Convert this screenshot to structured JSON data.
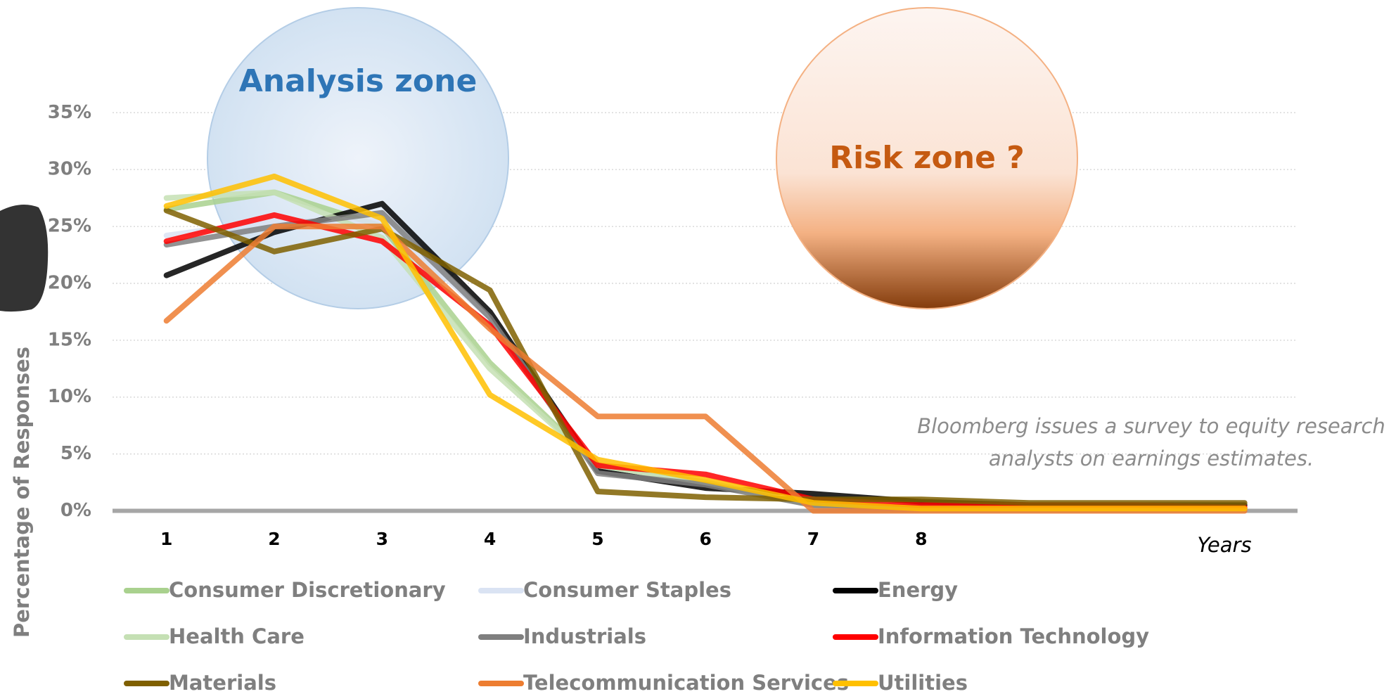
{
  "chart_data": {
    "type": "line",
    "y_label": "Percentage of Responses",
    "x_label": "Years",
    "categories": [
      "1",
      "2",
      "3",
      "4",
      "5",
      "6",
      "7",
      "8",
      null,
      null,
      null
    ],
    "ylim": [
      0,
      35
    ],
    "yticks": [
      {
        "value": 0,
        "label": "0%"
      },
      {
        "value": 5,
        "label": "5%"
      },
      {
        "value": 10,
        "label": "10%"
      },
      {
        "value": 15,
        "label": "15%"
      },
      {
        "value": 20,
        "label": "20%"
      },
      {
        "value": 25,
        "label": "25%"
      },
      {
        "value": 30,
        "label": "30%"
      },
      {
        "value": 35,
        "label": "35%"
      }
    ],
    "grid": true,
    "annotations": [
      "Analysis zone",
      "Risk zone ?"
    ],
    "note": [
      "Bloomberg issues a survey to equity research",
      "analysts on earnings estimates."
    ],
    "series": [
      {
        "name": "Consumer Discretionary",
        "color": "#a9d18e",
        "values": [
          26.5,
          28,
          25,
          13,
          4,
          2.5,
          0.5,
          0.3,
          0.2,
          0.2,
          0.2
        ]
      },
      {
        "name": "Consumer Staples",
        "color": "#dae3f3",
        "values": [
          24.2,
          25.5,
          25.5,
          17,
          3.5,
          2.5,
          0.5,
          0.3,
          0.2,
          0.2,
          0.2
        ]
      },
      {
        "name": "Energy",
        "color": "#000000",
        "values": [
          20.7,
          24.5,
          27,
          17.5,
          3.5,
          2,
          1.5,
          0.8,
          0.5,
          0.5,
          0.5
        ]
      },
      {
        "name": "Health Care",
        "color": "#c5e0b4",
        "values": [
          27.5,
          28,
          24,
          12.5,
          4,
          2.5,
          0.5,
          0.3,
          0.2,
          0.2,
          0.2
        ]
      },
      {
        "name": "Industrials",
        "color": "#7f7f7f",
        "values": [
          23.4,
          25,
          26.2,
          17,
          3.3,
          2.3,
          0.5,
          0.3,
          0.2,
          0.2,
          0.2
        ]
      },
      {
        "name": "Information Technology",
        "color": "#ff0000",
        "values": [
          23.7,
          26,
          23.7,
          16.3,
          4,
          3.2,
          1,
          0.5,
          0.5,
          0.5,
          0.3
        ]
      },
      {
        "name": "Materials",
        "color": "#7f6000",
        "values": [
          26.4,
          22.8,
          24.8,
          19.4,
          1.7,
          1.2,
          1,
          1,
          0.7,
          0.7,
          0.7
        ]
      },
      {
        "name": "Telecommunication Services",
        "color": "#ed7d31",
        "values": [
          16.7,
          25,
          25,
          16,
          8.3,
          8.3,
          0,
          0,
          0,
          0,
          0
        ]
      },
      {
        "name": "Utilities",
        "color": "#ffc000",
        "values": [
          26.8,
          29.4,
          25.7,
          10.2,
          4.5,
          2.7,
          0.7,
          0.2,
          0.2,
          0.2,
          0.2
        ]
      }
    ]
  }
}
